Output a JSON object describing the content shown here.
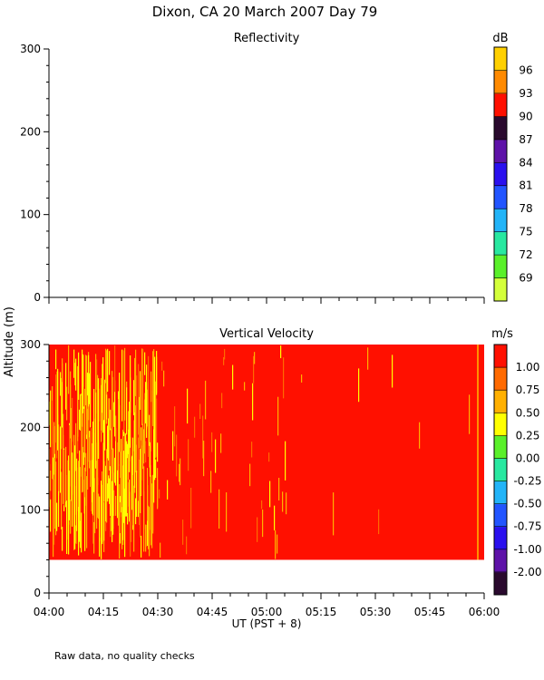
{
  "header": {
    "title": "Dixon, CA 20 March 2007  Day  79",
    "footnote": "Raw data, no quality checks"
  },
  "chart_data": [
    {
      "type": "heatmap",
      "title": "Reflectivity",
      "ylabel": "Altitude (m)",
      "y_ticks": [
        0,
        100,
        200,
        300
      ],
      "ylim": [
        0,
        300
      ],
      "x_ticks": [
        "04:00",
        "04:15",
        "04:30",
        "04:45",
        "05:00",
        "05:15",
        "05:30",
        "05:45",
        "06:00"
      ],
      "xlim": [
        "04:00",
        "06:00"
      ],
      "colorbar": {
        "unit": "dB",
        "tick_labels": [
          "69",
          "72",
          "75",
          "78",
          "81",
          "84",
          "87",
          "90",
          "93",
          "96"
        ],
        "colors": [
          "#d4ff3a",
          "#5af02a",
          "#28e8a0",
          "#22b4f8",
          "#2255ff",
          "#2a10ee",
          "#5e12a8",
          "#2a0a2e",
          "#ff1000",
          "#ff8a00",
          "#ffd000"
        ]
      },
      "data": "none"
    },
    {
      "type": "heatmap",
      "title": "Vertical Velocity",
      "xlabel": "UT  (PST + 8)",
      "y_ticks": [
        0,
        100,
        200,
        300
      ],
      "ylim": [
        0,
        300
      ],
      "x_ticks": [
        "04:00",
        "04:15",
        "04:30",
        "04:45",
        "05:00",
        "05:15",
        "05:30",
        "05:45",
        "06:00"
      ],
      "xlim": [
        "04:00",
        "06:00"
      ],
      "colorbar": {
        "unit": "m/s",
        "tick_labels": [
          "-2.00",
          "-1.00",
          "-0.75",
          "-0.50",
          "-0.25",
          "0.00",
          "0.25",
          "0.50",
          "0.75",
          "1.00"
        ],
        "colors": [
          "#2a0a2e",
          "#5e12a8",
          "#2a10ee",
          "#2255ff",
          "#22b4f8",
          "#28e8a0",
          "#5af02a",
          "#ffff00",
          "#ffb000",
          "#ff6a00",
          "#ff1000"
        ]
      },
      "data_altitude_range": [
        40,
        300
      ],
      "segments": [
        {
          "start": "04:00",
          "end": "04:30",
          "description": "mixed red, orange and yellow"
        },
        {
          "start": "04:30",
          "end": "05:06",
          "description": "mostly red with orange/yellow streaks"
        },
        {
          "start": "05:06",
          "end": "06:00",
          "description": "almost solid red"
        }
      ]
    }
  ]
}
